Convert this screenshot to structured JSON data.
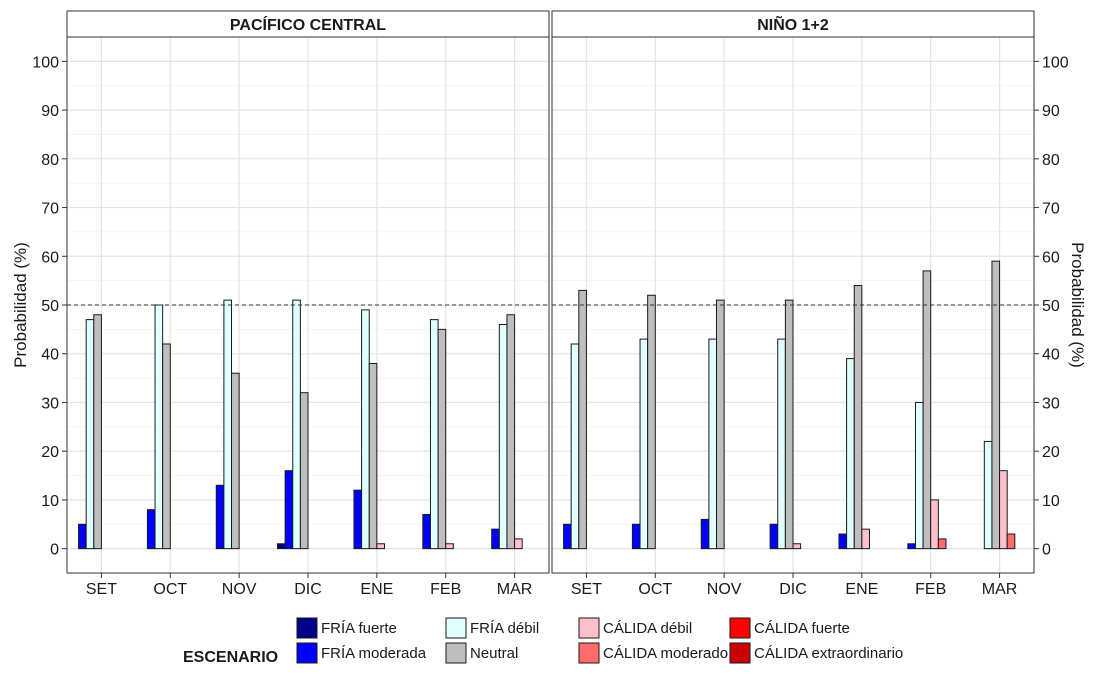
{
  "chart_data": {
    "type": "bar",
    "categories": [
      "SET",
      "OCT",
      "NOV",
      "DIC",
      "ENE",
      "FEB",
      "MAR"
    ],
    "ylabel": "Probabilidad (%)",
    "ylim": [
      -5,
      105
    ],
    "yticks": [
      0,
      10,
      20,
      30,
      40,
      50,
      60,
      70,
      80,
      90,
      100
    ],
    "reference_line": 50,
    "grid": true,
    "legend": {
      "title": "ESCENARIO",
      "position": "bottom",
      "columns": [
        [
          "FRÍA fuerte",
          "FRÍA moderada"
        ],
        [
          "FRÍA débil",
          "Neutral"
        ],
        [
          "CÁLIDA débil",
          "CÁLIDA moderado"
        ],
        [
          "CÁLIDA fuerte",
          "CÁLIDA extraordinario"
        ]
      ]
    },
    "series_meta": [
      {
        "name": "FRÍA fuerte",
        "color": "#00008b"
      },
      {
        "name": "FRÍA moderada",
        "color": "#0000ff"
      },
      {
        "name": "FRÍA débil",
        "color": "#e0ffff"
      },
      {
        "name": "Neutral",
        "color": "#bebebe"
      },
      {
        "name": "CÁLIDA débil",
        "color": "#ffc0cb"
      },
      {
        "name": "CÁLIDA moderado",
        "color": "#ff6a6a"
      },
      {
        "name": "CÁLIDA fuerte",
        "color": "#ff0000"
      },
      {
        "name": "CÁLIDA extraordinario",
        "color": "#cd0000"
      }
    ],
    "panels": [
      {
        "title": "PACÍFICO CENTRAL",
        "series": [
          {
            "name": "FRÍA fuerte",
            "values": [
              0,
              0,
              0,
              1,
              0,
              0,
              0
            ]
          },
          {
            "name": "FRÍA moderada",
            "values": [
              5,
              8,
              13,
              16,
              12,
              7,
              4
            ]
          },
          {
            "name": "FRÍA débil",
            "values": [
              47,
              50,
              51,
              51,
              49,
              47,
              46
            ]
          },
          {
            "name": "Neutral",
            "values": [
              48,
              42,
              36,
              32,
              38,
              45,
              48
            ]
          },
          {
            "name": "CÁLIDA débil",
            "values": [
              0,
              0,
              0,
              0,
              1,
              1,
              2
            ]
          },
          {
            "name": "CÁLIDA moderado",
            "values": [
              0,
              0,
              0,
              0,
              0,
              0,
              0
            ]
          },
          {
            "name": "CÁLIDA fuerte",
            "values": [
              0,
              0,
              0,
              0,
              0,
              0,
              0
            ]
          },
          {
            "name": "CÁLIDA extraordinario",
            "values": [
              0,
              0,
              0,
              0,
              0,
              0,
              0
            ]
          }
        ]
      },
      {
        "title": "NIÑO 1+2",
        "series": [
          {
            "name": "FRÍA fuerte",
            "values": [
              0,
              0,
              0,
              0,
              0,
              0,
              0
            ]
          },
          {
            "name": "FRÍA moderada",
            "values": [
              5,
              5,
              6,
              5,
              3,
              1,
              0
            ]
          },
          {
            "name": "FRÍA débil",
            "values": [
              42,
              43,
              43,
              43,
              39,
              30,
              22
            ]
          },
          {
            "name": "Neutral",
            "values": [
              53,
              52,
              51,
              51,
              54,
              57,
              59
            ]
          },
          {
            "name": "CÁLIDA débil",
            "values": [
              0,
              0,
              0,
              1,
              4,
              10,
              16
            ]
          },
          {
            "name": "CÁLIDA moderado",
            "values": [
              0,
              0,
              0,
              0,
              0,
              2,
              3
            ]
          },
          {
            "name": "CÁLIDA fuerte",
            "values": [
              0,
              0,
              0,
              0,
              0,
              0,
              0
            ]
          },
          {
            "name": "CÁLIDA extraordinario",
            "values": [
              0,
              0,
              0,
              0,
              0,
              0,
              0
            ]
          }
        ]
      }
    ]
  }
}
